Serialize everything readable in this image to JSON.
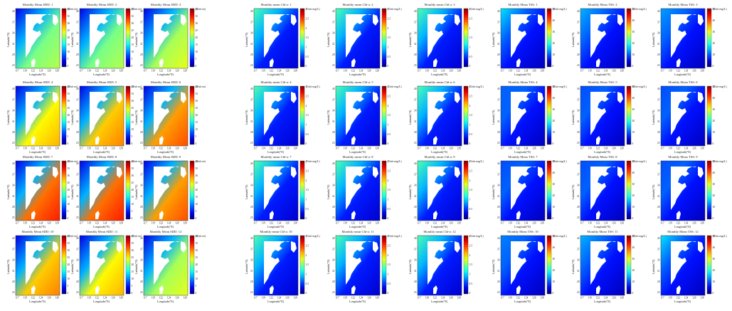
{
  "figure": {
    "groups": [
      {
        "name": "SDD",
        "title_prefix": "Monthly Mean SDD",
        "unit": "(Unit:m)",
        "cbar_ticks": [
          "40",
          "35",
          "30",
          "25",
          "20",
          "15",
          "10",
          "5",
          "0"
        ],
        "colormap": "jet"
      },
      {
        "name": "Chl-a",
        "title_prefix": "Monthly mean Chl-a",
        "unit": "(Unit:mg/L)",
        "cbar_ticks": [
          "3",
          "2.5",
          "2",
          "1.5",
          "1",
          "0.5",
          "0"
        ],
        "colormap": "jet"
      },
      {
        "name": "TSS",
        "title_prefix": "Monthly Mean TSS",
        "unit": "(Unit:mg/L)",
        "cbar_ticks": [
          "50",
          "40",
          "30",
          "20",
          "10",
          "0"
        ],
        "colormap": "jet"
      }
    ],
    "xlabel": "Longitude(°E)",
    "ylabel": "Latitude(°N)",
    "xticks": [
      "117",
      "119",
      "122",
      "124",
      "126",
      "128"
    ],
    "yticks": [
      "40",
      "37",
      "34",
      "31",
      "28",
      "25"
    ],
    "months": [
      "1",
      "2",
      "3",
      "4",
      "5",
      "6",
      "7",
      "8",
      "9",
      "10",
      "11",
      "12"
    ],
    "colors": {
      "land": "#ffffff",
      "jet_low": "#00008f",
      "jet_mid": "#7fff7f",
      "jet_high": "#800000"
    }
  }
}
